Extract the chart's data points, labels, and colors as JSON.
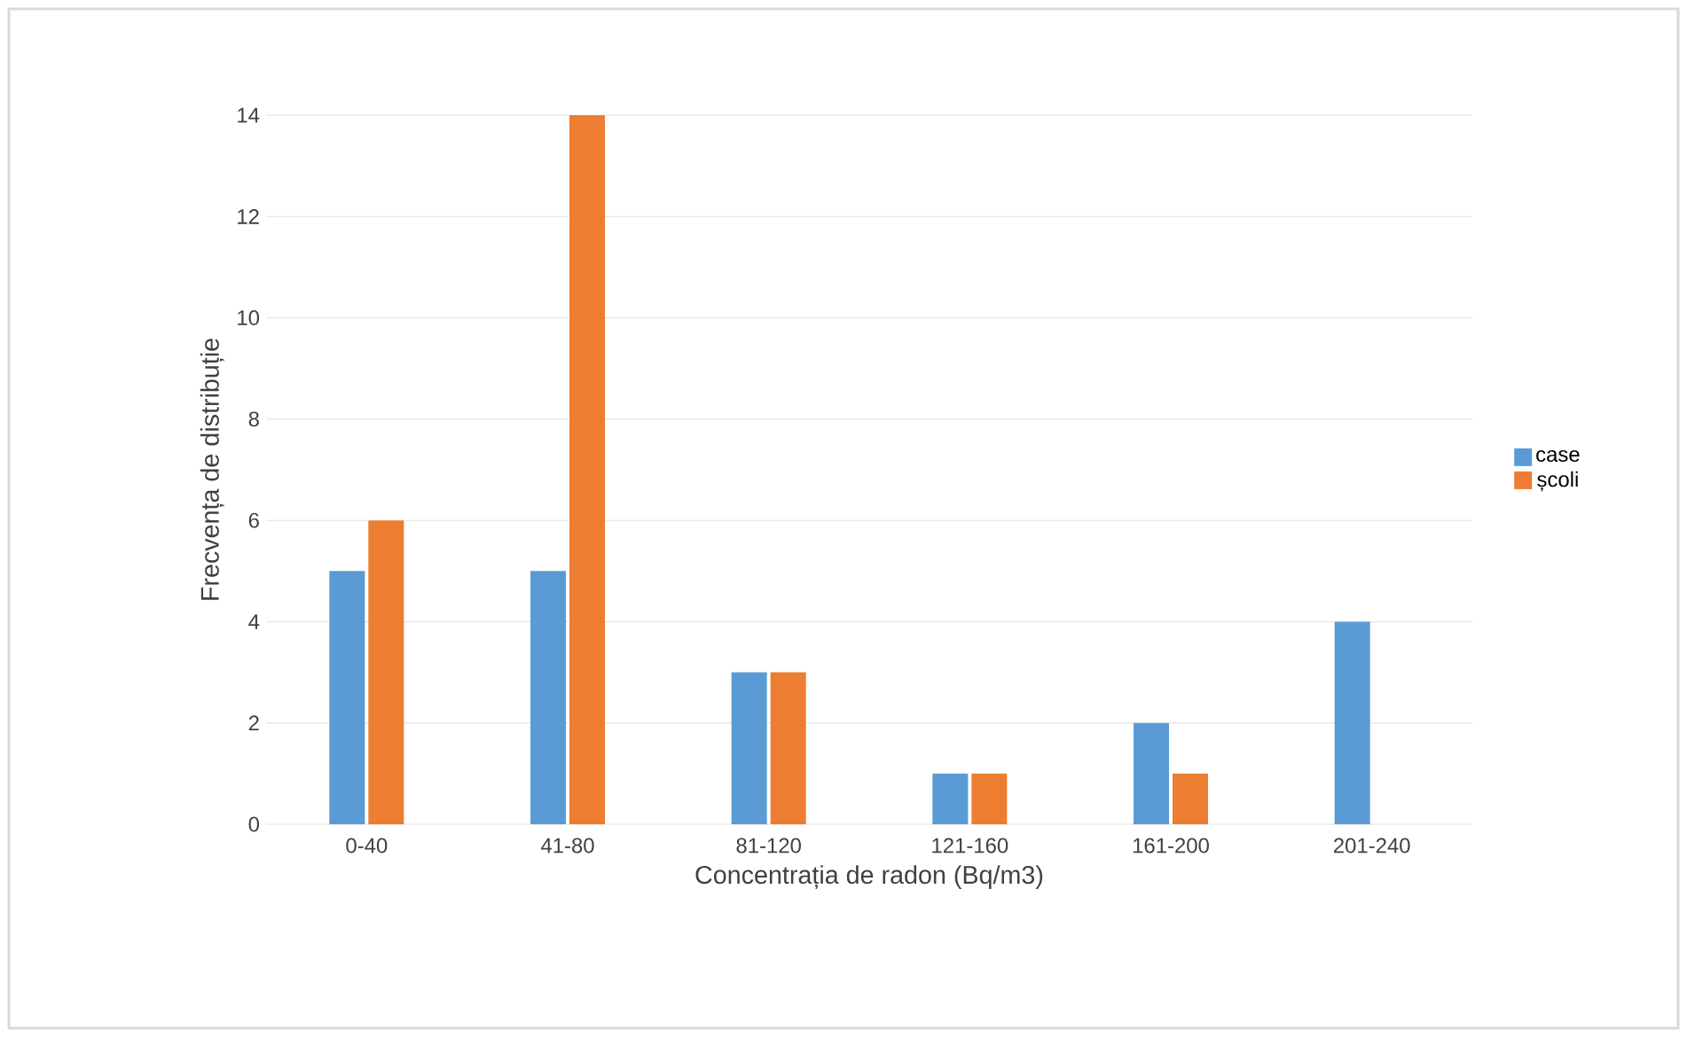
{
  "chart_data": {
    "type": "bar",
    "xlabel": "Concentrația de radon (Bq/m3)",
    "ylabel": "Frecvența de distribuție",
    "categories": [
      "0-40",
      "41-80",
      "81-120",
      "121-160",
      "161-200",
      "201-240"
    ],
    "series": [
      {
        "name": "case",
        "color": "#5b9bd5",
        "values": [
          5,
          5,
          3,
          1,
          2,
          4
        ]
      },
      {
        "name": "școli",
        "color": "#ed7d31",
        "values": [
          6,
          14,
          3,
          1,
          1,
          0
        ]
      }
    ],
    "ylim": [
      0,
      14
    ],
    "yticks": [
      0,
      2,
      4,
      6,
      8,
      10,
      12,
      14
    ],
    "grid": "y",
    "legend": "right"
  }
}
